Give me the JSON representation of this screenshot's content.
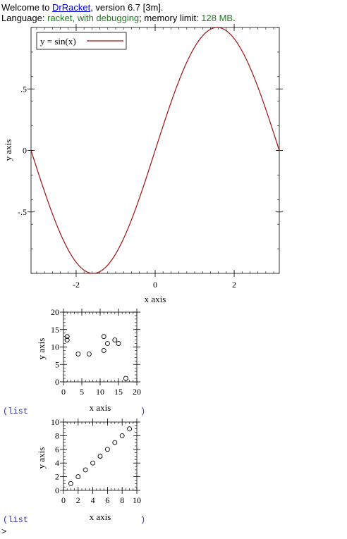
{
  "header": {
    "welcome_prefix": "Welcome to ",
    "app_link": "DrRacket",
    "version_text": ", version 6.7 [3m].",
    "language_label": "Language: ",
    "language_value": "racket, with debugging",
    "memory_label": "; memory limit: ",
    "memory_value": "128 MB",
    "period": "."
  },
  "chart_data": [
    {
      "type": "line",
      "function": "sin(x)",
      "series": [
        {
          "name": "y = sin(x)",
          "color": "#a01010"
        }
      ],
      "x": [
        -3.14159,
        -2.356,
        -1.5708,
        -0.785,
        0,
        0.785,
        1.5708,
        2.356,
        3.14159
      ],
      "y": [
        0,
        -0.7071,
        -1,
        -0.7071,
        0,
        0.7071,
        1,
        0.7071,
        0
      ],
      "xlim": [
        -3.14159,
        3.14159
      ],
      "ylim": [
        -1,
        1
      ],
      "xticks": [
        -2,
        0,
        2
      ],
      "xtick_labels": [
        "-2",
        "0",
        "2"
      ],
      "yticks": [
        -0.5,
        0,
        0.5
      ],
      "ytick_labels": [
        "-.5",
        "0",
        ".5"
      ],
      "xlabel": "x axis",
      "ylabel": "y axis",
      "legend": "top-left"
    },
    {
      "type": "scatter",
      "x": [
        1,
        1,
        4,
        7,
        11,
        11,
        12,
        14,
        15,
        17
      ],
      "y": [
        12,
        13,
        8,
        8,
        9,
        13,
        11,
        12,
        11,
        1
      ],
      "xlim": [
        0,
        20
      ],
      "ylim": [
        0,
        20
      ],
      "xticks": [
        0,
        5,
        10,
        15,
        20
      ],
      "xtick_labels": [
        "0",
        "5",
        "10",
        "15",
        "20"
      ],
      "yticks": [
        0,
        5,
        10,
        15,
        20
      ],
      "ytick_labels": [
        "0",
        "5",
        "10",
        "15",
        "20"
      ],
      "xlabel": "x axis",
      "ylabel": "y axis"
    },
    {
      "type": "scatter",
      "x": [
        1,
        2,
        3,
        4,
        5,
        6,
        7,
        8,
        9
      ],
      "y": [
        1,
        2,
        3,
        4,
        5,
        6,
        7,
        8,
        9
      ],
      "xlim": [
        0,
        10
      ],
      "ylim": [
        0,
        10
      ],
      "xticks": [
        0,
        2,
        4,
        6,
        8,
        10
      ],
      "xtick_labels": [
        "0",
        "2",
        "4",
        "6",
        "8",
        "10"
      ],
      "yticks": [
        0,
        2,
        4,
        6,
        8,
        10
      ],
      "ytick_labels": [
        "0",
        "2",
        "4",
        "6",
        "8",
        "10"
      ],
      "xlabel": "x axis",
      "ylabel": "y axis"
    }
  ],
  "repl": {
    "list_open": "(list",
    "list_close": ")",
    "prompt": ">"
  }
}
